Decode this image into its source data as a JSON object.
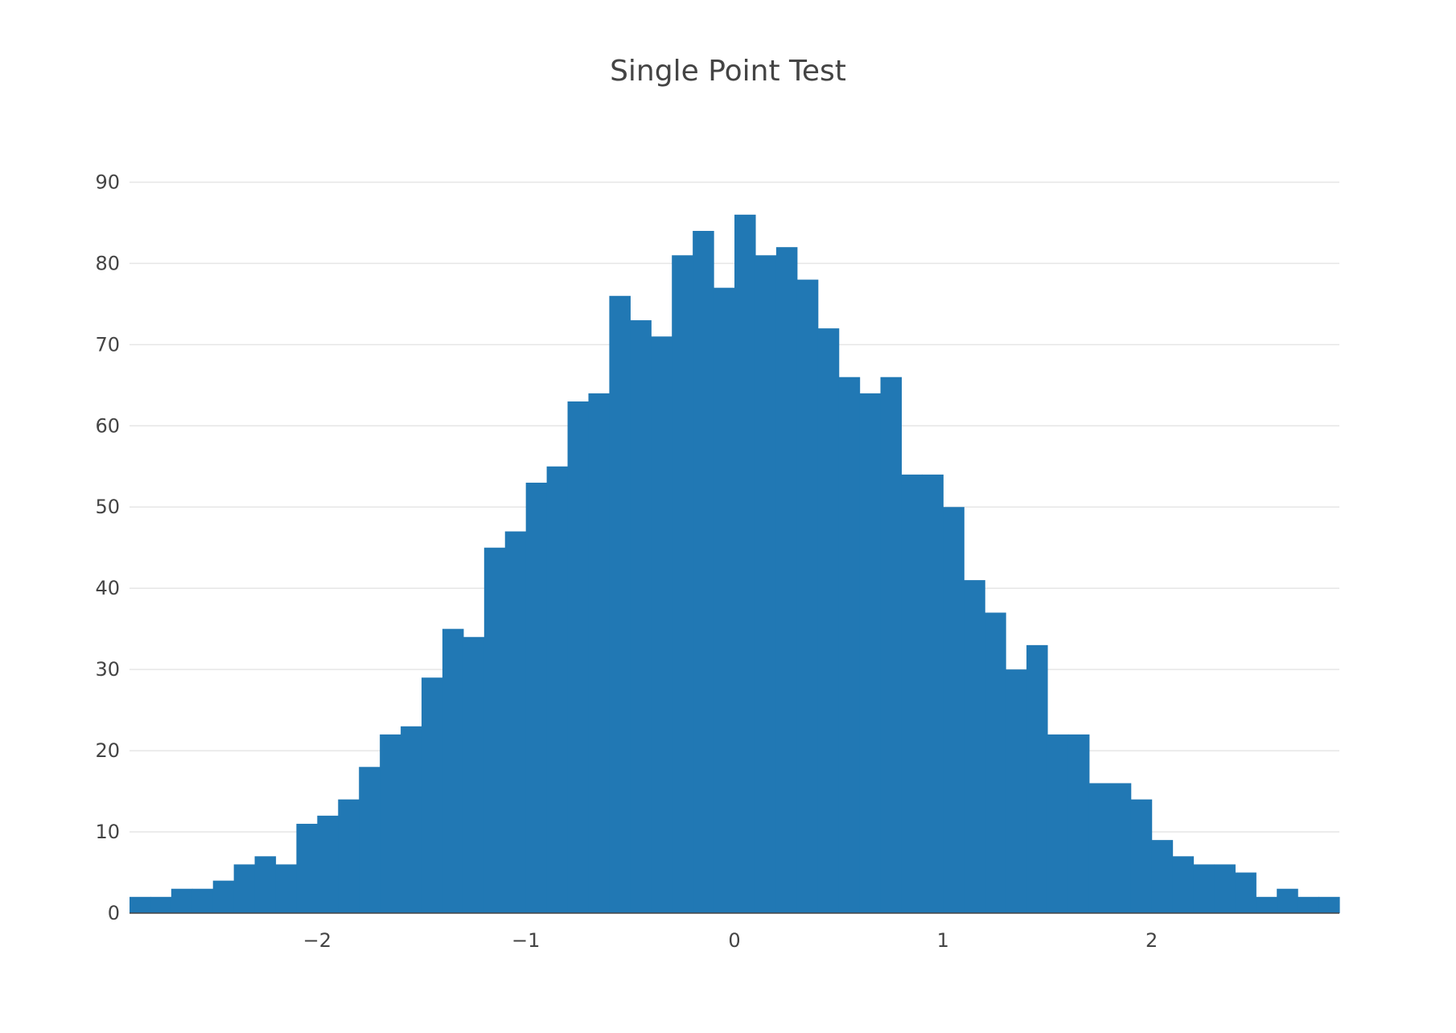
{
  "colors": {
    "bar": "#2178b4",
    "text": "#444444",
    "grid": "#e6e6e6",
    "background": "#ffffff"
  },
  "chart_data": {
    "type": "bar",
    "title": "Single Point Test",
    "xlabel": "",
    "ylabel": "",
    "bin_width": 0.1,
    "bin_start": -2.9,
    "xlim": [
      -2.9,
      2.9
    ],
    "ylim": [
      0,
      94.6
    ],
    "grid": true,
    "legend": "none",
    "x_ticks": [
      -2,
      -1,
      0,
      1,
      2
    ],
    "x_tick_labels": [
      "−2",
      "−1",
      "0",
      "1",
      "2"
    ],
    "y_ticks": [
      0,
      10,
      20,
      30,
      40,
      50,
      60,
      70,
      80,
      90
    ],
    "y_tick_labels": [
      "0",
      "10",
      "20",
      "30",
      "40",
      "50",
      "60",
      "70",
      "80",
      "90"
    ],
    "values": [
      2,
      2,
      3,
      3,
      4,
      6,
      7,
      6,
      11,
      12,
      14,
      18,
      22,
      23,
      29,
      35,
      34,
      45,
      47,
      53,
      55,
      63,
      64,
      76,
      73,
      71,
      81,
      84,
      77,
      86,
      81,
      82,
      78,
      72,
      66,
      64,
      66,
      54,
      54,
      50,
      41,
      37,
      30,
      33,
      22,
      22,
      16,
      16,
      14,
      9,
      7,
      6,
      6,
      5,
      2,
      3,
      2,
      2
    ]
  }
}
